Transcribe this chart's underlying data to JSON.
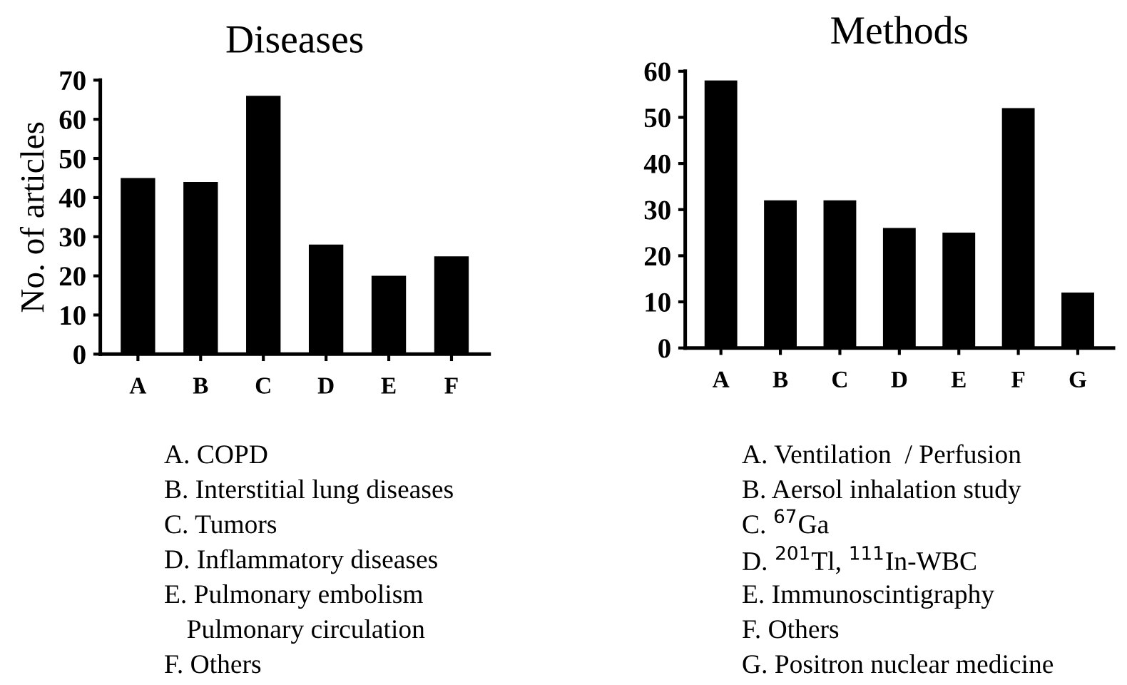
{
  "chart_data": [
    {
      "type": "bar",
      "title": "Diseases",
      "ylabel": "No. of articles",
      "categories": [
        "A",
        "B",
        "C",
        "D",
        "E",
        "F"
      ],
      "values": [
        45,
        44,
        66,
        28,
        20,
        25
      ],
      "color": "#000000",
      "ylim": [
        0,
        70
      ],
      "yticks": [
        0,
        10,
        20,
        30,
        40,
        50,
        60,
        70
      ],
      "grid": false,
      "annotations": [
        "A. COPD",
        "B. Interstitial lung diseases",
        "C. Tumors",
        "D. Inflammatory diseases",
        "E. Pulmonary embolism\nPulmonary circulation",
        "F. Others"
      ]
    },
    {
      "type": "bar",
      "title": "Methods",
      "categories": [
        "A",
        "B",
        "C",
        "D",
        "E",
        "F",
        "G"
      ],
      "values": [
        58,
        32,
        32,
        26,
        25,
        52,
        12
      ],
      "color": "#000000",
      "ylim": [
        0,
        60
      ],
      "yticks": [
        0,
        10,
        20,
        30,
        40,
        50,
        60
      ],
      "grid": false,
      "annotations": [
        "A. Ventilation  / Perfusion",
        "B. Aersol inhalation study",
        "C. $^{67}$Ga",
        "D. $^{201}$Tl, $^{111}$In-WBC",
        "E. Immunoscintigraphy",
        "F. Others",
        "G. Positron nuclear medicine"
      ]
    }
  ]
}
